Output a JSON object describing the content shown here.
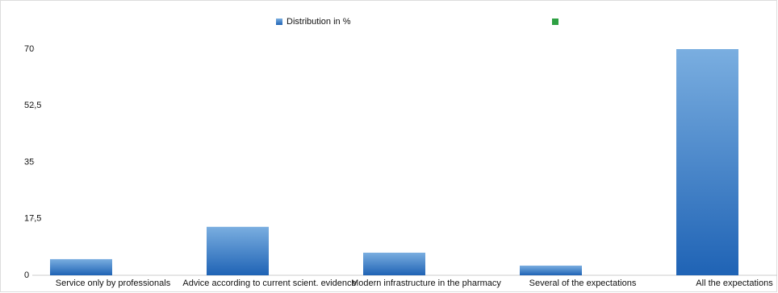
{
  "chart_data": {
    "type": "bar",
    "categories": [
      "Service only by professionals",
      "Advice according to current scient. evidence",
      "Modern infrastructure in the pharmacy",
      "Several of the expectations",
      "All the expectations"
    ],
    "series": [
      {
        "name": "Distribution in %",
        "color": "#1f63b5",
        "values": [
          5,
          15,
          7,
          3,
          70
        ]
      },
      {
        "color": "#2ea043",
        "values": [
          null,
          null,
          null,
          null,
          null
        ]
      }
    ],
    "ylim": [
      0,
      70
    ],
    "yticks": [
      0,
      {
        "value": 17.5,
        "label": "17,5"
      },
      35,
      {
        "value": 52.5,
        "label": "52,5"
      },
      70
    ],
    "legend": "top"
  }
}
